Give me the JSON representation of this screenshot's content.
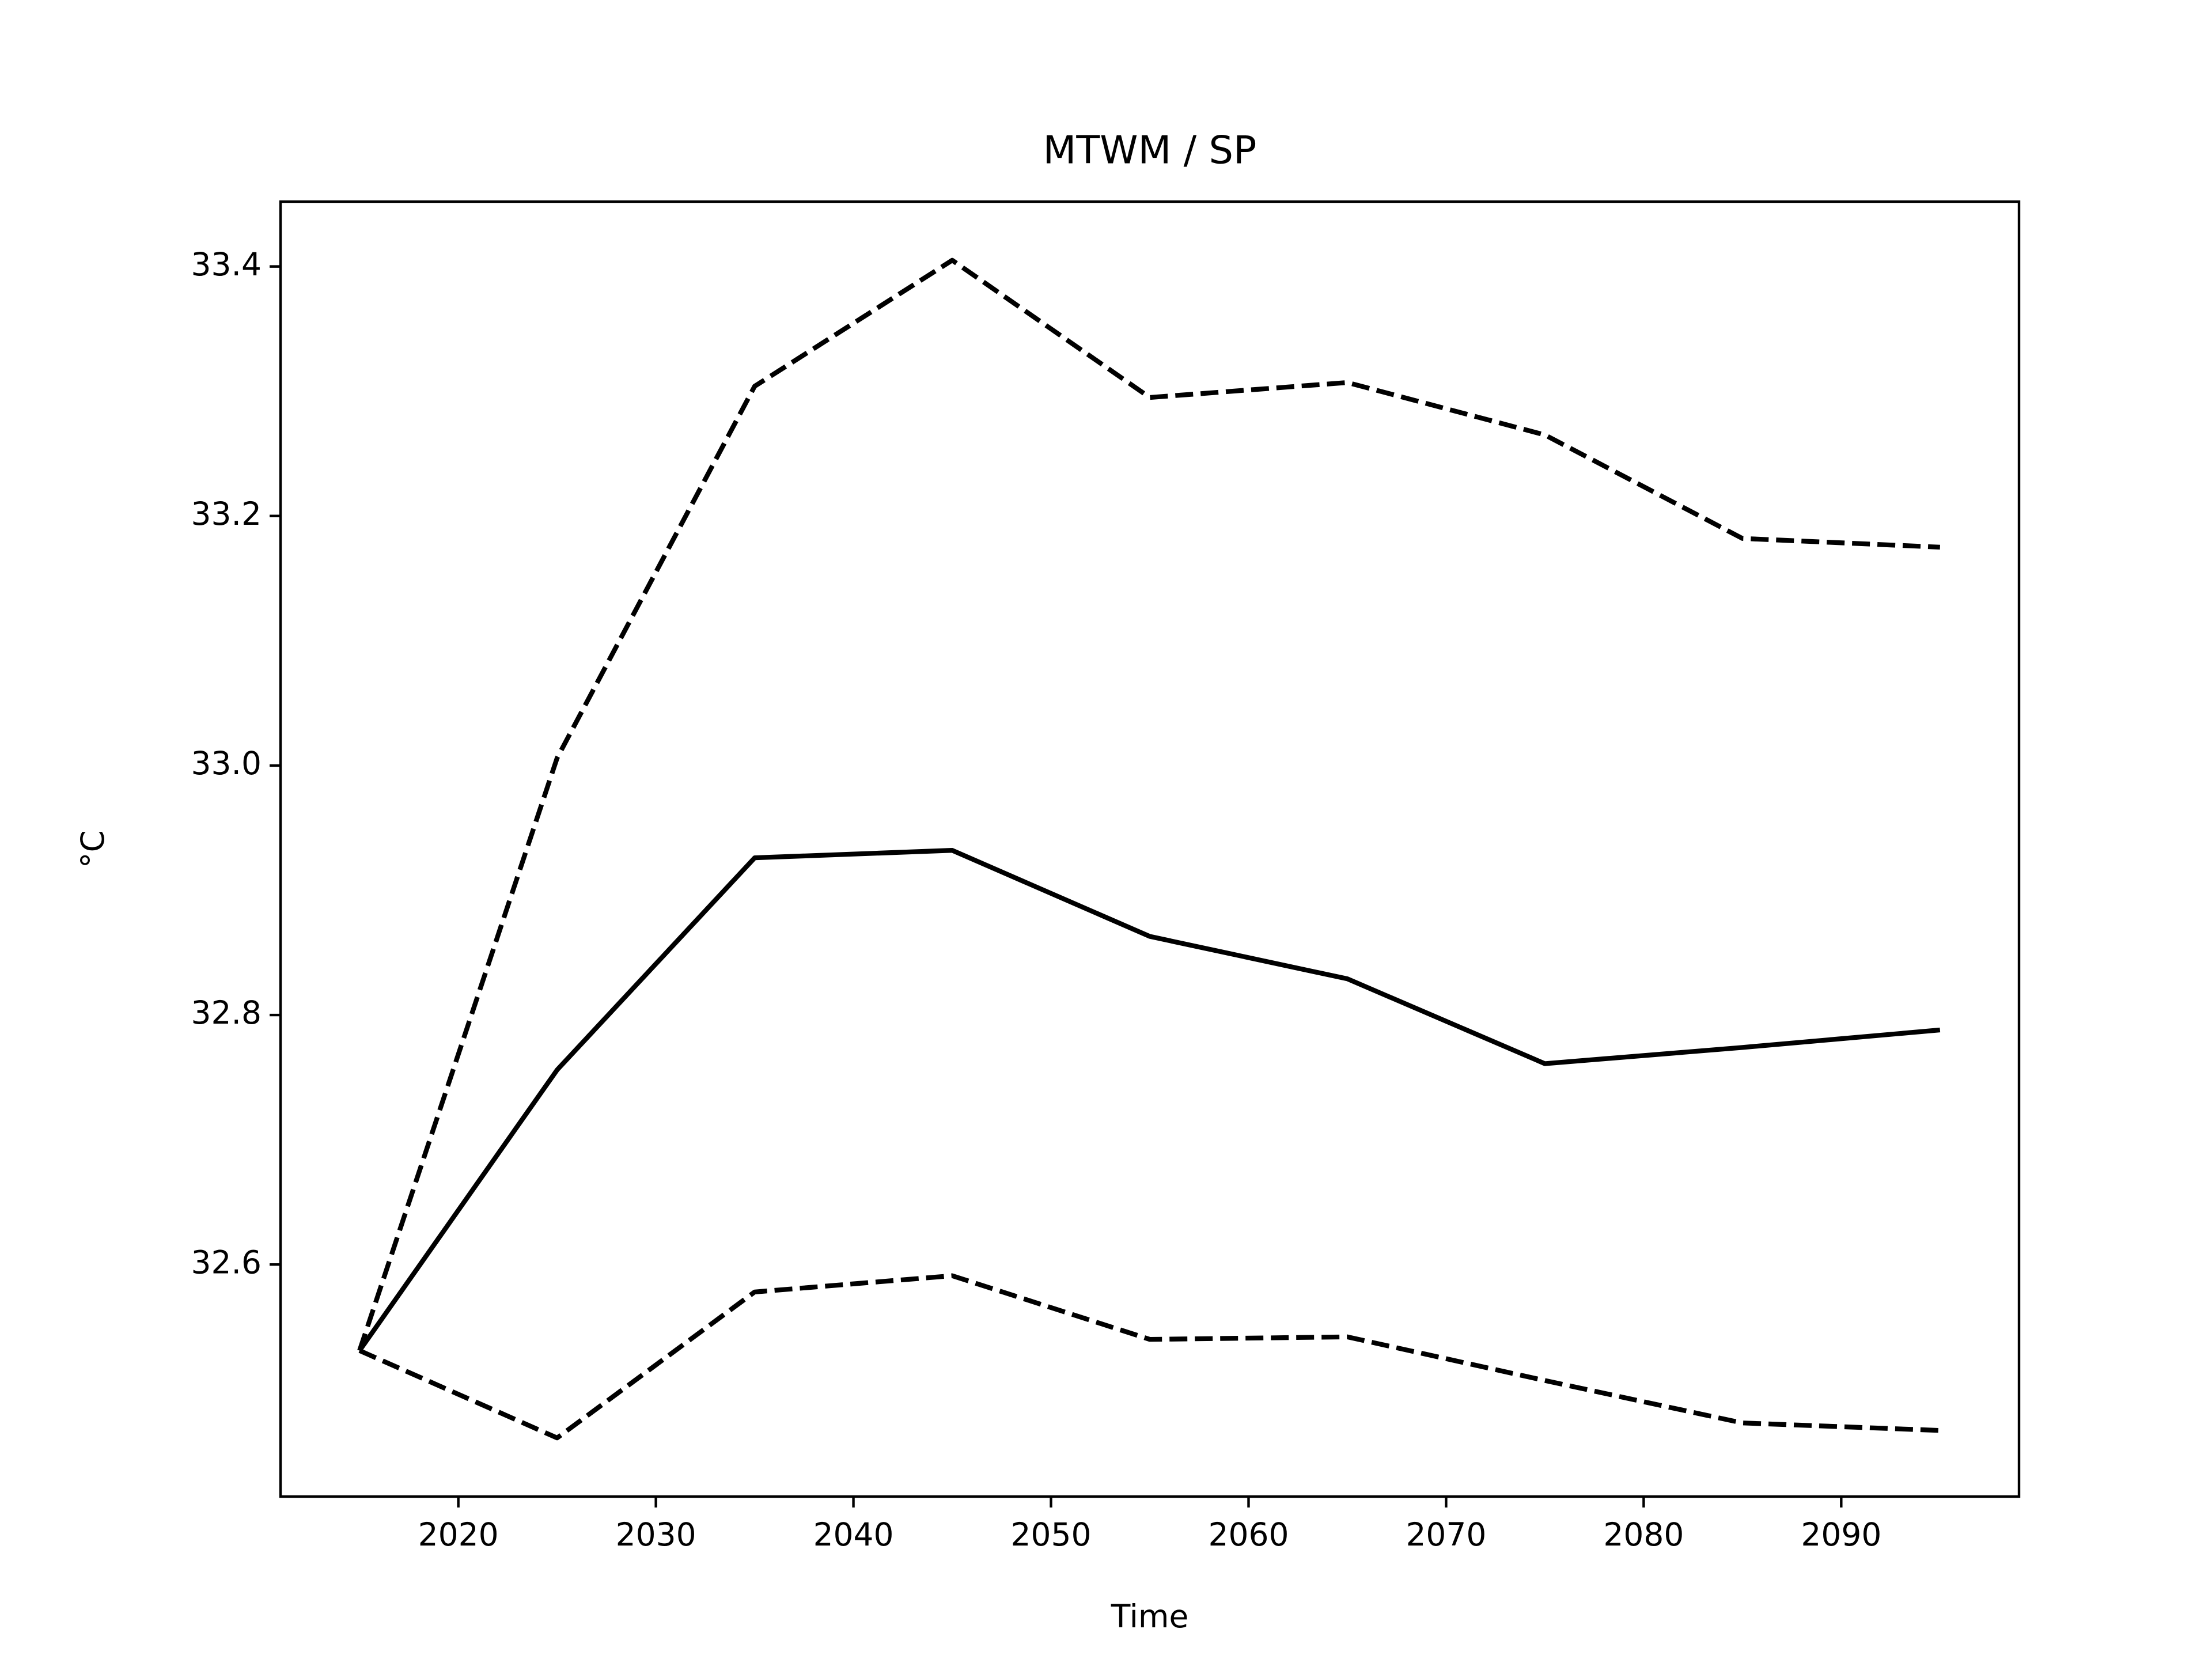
{
  "chart_data": {
    "type": "line",
    "title": "MTWM / SP",
    "x_label": "Time",
    "y_label": "°C",
    "x": [
      2015,
      2025,
      2035,
      2045,
      2055,
      2065,
      2075,
      2085,
      2095
    ],
    "series": [
      {
        "color": "#000000",
        "linestyle": "solid",
        "values": [
          32.531,
          32.756,
          32.926,
          32.932,
          32.863,
          32.829,
          32.761,
          32.774,
          32.788
        ]
      },
      {
        "color": "#000000",
        "linestyle": "dashed",
        "values": [
          32.531,
          33.006,
          33.304,
          33.405,
          33.295,
          33.307,
          33.265,
          33.182,
          33.175
        ]
      },
      {
        "color": "#000000",
        "linestyle": "dashed",
        "values": [
          32.531,
          32.461,
          32.578,
          32.591,
          32.54,
          32.542,
          32.507,
          32.473,
          32.467
        ]
      }
    ],
    "xlim": [
      2011,
      2099
    ],
    "xticks": [
      2020,
      2030,
      2040,
      2050,
      2060,
      2070,
      2080,
      2090
    ],
    "ylim": [
      32.414,
      33.452
    ],
    "yticks": [
      32.6,
      32.8,
      {
        "value": 33,
        "label": "33.0"
      },
      33.2,
      33.4
    ],
    "grid": false
  }
}
